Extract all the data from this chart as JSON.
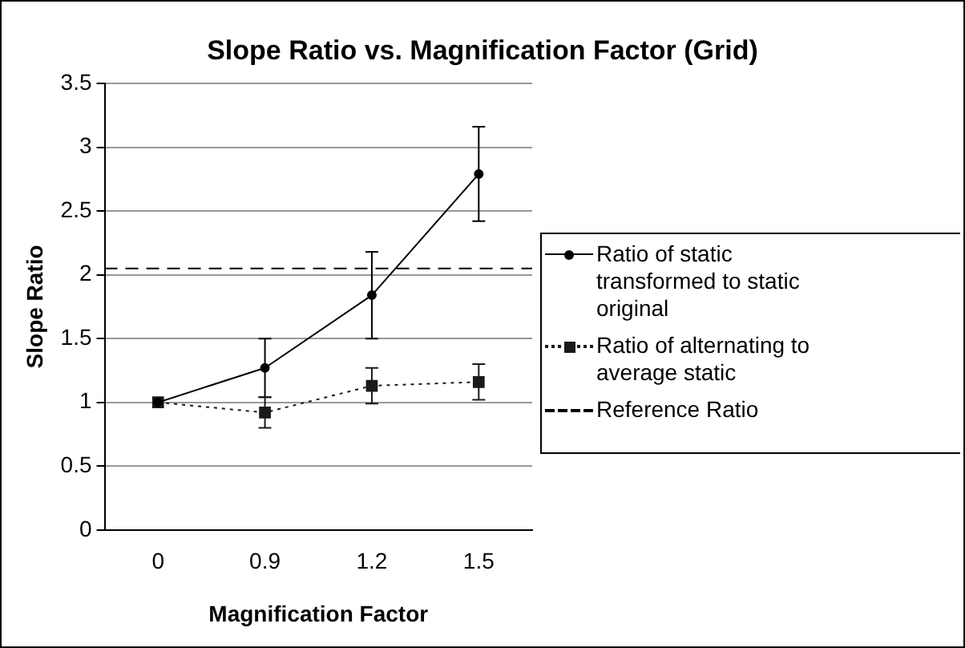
{
  "chart_data": {
    "type": "line",
    "title": "Slope Ratio vs. Magnification Factor (Grid)",
    "xlabel": "Magnification Factor",
    "ylabel": "Slope Ratio",
    "categories": [
      "0",
      "0.9",
      "1.2",
      "1.5"
    ],
    "series": [
      {
        "name": "Ratio of static transformed to static original",
        "color": "#000000",
        "values": [
          1,
          1.27,
          1.84,
          2.79
        ],
        "errors": [
          null,
          [
            1.04,
            1.5
          ],
          [
            1.5,
            2.18
          ],
          [
            2.42,
            3.16
          ]
        ],
        "marker": "circle",
        "line_style": "solid"
      },
      {
        "name": "Ratio of alternating to average static",
        "color": "#1a1a1a",
        "values": [
          1,
          0.92,
          1.13,
          1.16
        ],
        "errors": [
          null,
          [
            0.8,
            1.04
          ],
          [
            0.99,
            1.27
          ],
          [
            1.02,
            1.3
          ]
        ],
        "marker": "square",
        "line_style": "dotted"
      }
    ],
    "ref_lines": [
      {
        "axis": "y",
        "value": 2.05,
        "label": "Reference Ratio",
        "color": "#000000",
        "line_style": "dashed"
      }
    ],
    "ylim": [
      0,
      3.5
    ],
    "yticks": [
      0,
      0.5,
      1,
      1.5,
      2,
      2.5,
      3,
      3.5
    ],
    "grid": "y",
    "legend": "right"
  }
}
